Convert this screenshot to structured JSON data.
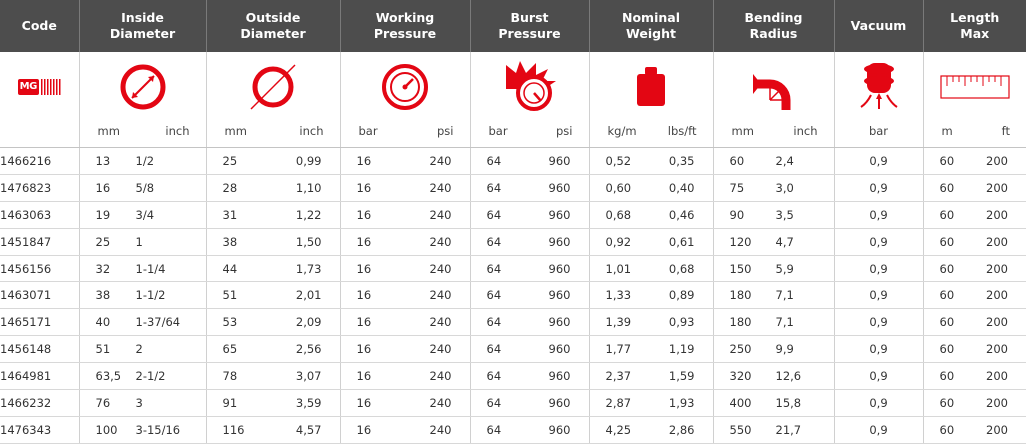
{
  "headers": {
    "code": "Code",
    "inside_diameter": [
      "Inside",
      "Diameter"
    ],
    "outside_diameter": [
      "Outside",
      "Diameter"
    ],
    "working_pressure": [
      "Working",
      "Pressure"
    ],
    "burst_pressure": [
      "Burst",
      "Pressure"
    ],
    "nominal_weight": [
      "Nominal",
      "Weight"
    ],
    "bending_radius": [
      "Bending",
      "Radius"
    ],
    "vacuum": "Vacuum",
    "length_max": [
      "Length",
      "Max"
    ]
  },
  "logo_text": "MG",
  "units": {
    "inside_diameter": [
      "mm",
      "inch"
    ],
    "outside_diameter": [
      "mm",
      "inch"
    ],
    "working_pressure": [
      "bar",
      "psi"
    ],
    "burst_pressure": [
      "bar",
      "psi"
    ],
    "nominal_weight": [
      "kg/m",
      "lbs/ft"
    ],
    "bending_radius": [
      "mm",
      "inch"
    ],
    "vacuum": "bar",
    "length_max": [
      "m",
      "ft"
    ]
  },
  "colors": {
    "header_bg": "#4d4d4d",
    "accent": "#e30613"
  },
  "icons": [
    "inside-diameter-icon",
    "outside-diameter-icon",
    "pressure-gauge-icon",
    "burst-gauge-icon",
    "weight-icon",
    "bending-radius-icon",
    "vacuum-icon",
    "ruler-icon"
  ],
  "rows": [
    [
      "1466216",
      "13",
      "1/2",
      "25",
      "0,99",
      "16",
      "240",
      "64",
      "960",
      "0,52",
      "0,35",
      "60",
      "2,4",
      "0,9",
      "60",
      "200"
    ],
    [
      "1476823",
      "16",
      "5/8",
      "28",
      "1,10",
      "16",
      "240",
      "64",
      "960",
      "0,60",
      "0,40",
      "75",
      "3,0",
      "0,9",
      "60",
      "200"
    ],
    [
      "1463063",
      "19",
      "3/4",
      "31",
      "1,22",
      "16",
      "240",
      "64",
      "960",
      "0,68",
      "0,46",
      "90",
      "3,5",
      "0,9",
      "60",
      "200"
    ],
    [
      "1451847",
      "25",
      "1",
      "38",
      "1,50",
      "16",
      "240",
      "64",
      "960",
      "0,92",
      "0,61",
      "120",
      "4,7",
      "0,9",
      "60",
      "200"
    ],
    [
      "1456156",
      "32",
      "1-1/4",
      "44",
      "1,73",
      "16",
      "240",
      "64",
      "960",
      "1,01",
      "0,68",
      "150",
      "5,9",
      "0,9",
      "60",
      "200"
    ],
    [
      "1463071",
      "38",
      "1-1/2",
      "51",
      "2,01",
      "16",
      "240",
      "64",
      "960",
      "1,33",
      "0,89",
      "180",
      "7,1",
      "0,9",
      "60",
      "200"
    ],
    [
      "1465171",
      "40",
      "1-37/64",
      "53",
      "2,09",
      "16",
      "240",
      "64",
      "960",
      "1,39",
      "0,93",
      "180",
      "7,1",
      "0,9",
      "60",
      "200"
    ],
    [
      "1456148",
      "51",
      "2",
      "65",
      "2,56",
      "16",
      "240",
      "64",
      "960",
      "1,77",
      "1,19",
      "250",
      "9,9",
      "0,9",
      "60",
      "200"
    ],
    [
      "1464981",
      "63,5",
      "2-1/2",
      "78",
      "3,07",
      "16",
      "240",
      "64",
      "960",
      "2,37",
      "1,59",
      "320",
      "12,6",
      "0,9",
      "60",
      "200"
    ],
    [
      "1466232",
      "76",
      "3",
      "91",
      "3,59",
      "16",
      "240",
      "64",
      "960",
      "2,87",
      "1,93",
      "400",
      "15,8",
      "0,9",
      "60",
      "200"
    ],
    [
      "1476343",
      "100",
      "3-15/16",
      "116",
      "4,57",
      "16",
      "240",
      "64",
      "960",
      "4,25",
      "2,86",
      "550",
      "21,7",
      "0,9",
      "60",
      "200"
    ]
  ]
}
